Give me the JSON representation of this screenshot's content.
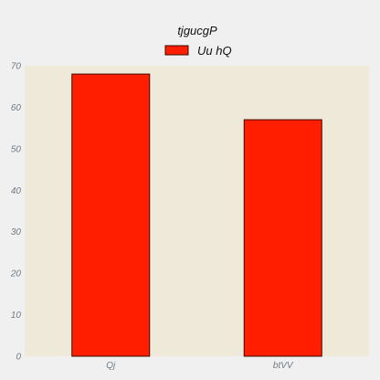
{
  "chart_data": {
    "type": "bar",
    "title": "tjgucgP",
    "xlabel": "",
    "ylabel": "",
    "categories": [
      "Qj",
      "btVV"
    ],
    "series": [
      {
        "name": "Uu hQ",
        "values": [
          68,
          57
        ]
      }
    ],
    "ylim": [
      0,
      70
    ],
    "yticks": [
      0,
      10,
      20,
      30,
      40,
      50,
      60,
      70
    ],
    "grid": false,
    "legend_position": "top-center",
    "colors": {
      "figure_background": "#f0f0f0",
      "plot_background": "#efe9d9",
      "bar_fill": "#ff1f00",
      "bar_edge": "#3a0a00",
      "tick_label": "#6f7b85"
    }
  }
}
